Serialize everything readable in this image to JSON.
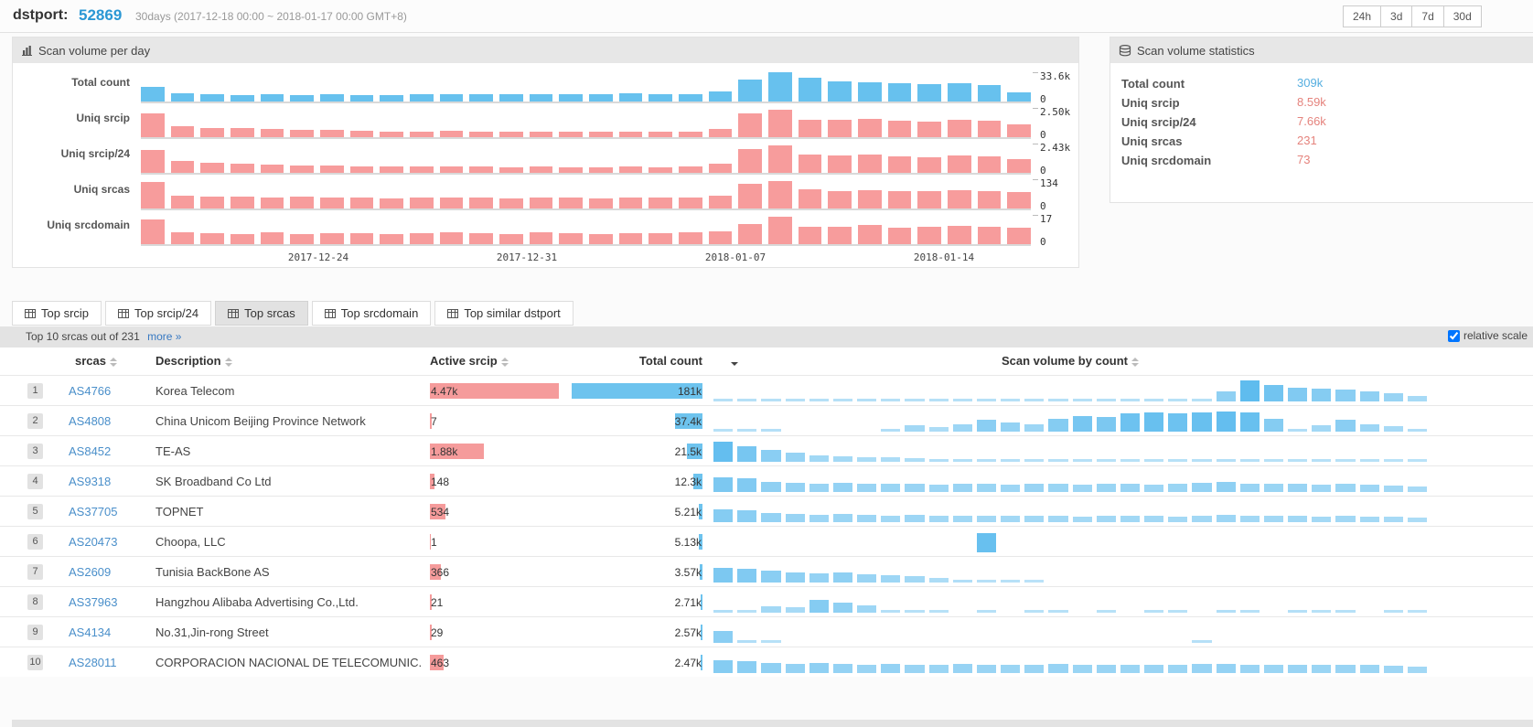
{
  "header": {
    "dstport_label": "dstport:",
    "dstport_value": "52869",
    "range_text": "30days (2017-12-18 00:00 ~ 2018-01-17 00:00 GMT+8)",
    "range_buttons": [
      "24h",
      "3d",
      "7d",
      "30d"
    ]
  },
  "colors": {
    "accent_blue": "#2a97d4",
    "chart_bar_blue": "#67c1ee",
    "chart_bar_pink": "#f79c9c",
    "table_bar_blue": "#6dc3ee",
    "table_bar_red": "#f59b9b",
    "stat_blue": "#55aee0",
    "stat_red": "#e5837d",
    "link_blue": "#4a8fca"
  },
  "chart_panel": {
    "title": "Scan volume per day"
  },
  "chart_data": {
    "type": "bar",
    "title": "Scan volume per day",
    "n_days": 30,
    "x_start": "2017-12-18",
    "x_end": "2018-01-16",
    "x_tick_labels": [
      "2017-12-24",
      "2017-12-31",
      "2018-01-07",
      "2018-01-14"
    ],
    "x_tick_day_index": [
      6,
      13,
      20,
      27
    ],
    "grid": false,
    "series": [
      {
        "name": "Total count",
        "color": "#67c1ee",
        "axis_max": "33.6k",
        "axis_min": "0",
        "ylim": [
          0,
          33600
        ],
        "values_rel": [
          0.5,
          0.28,
          0.25,
          0.22,
          0.24,
          0.22,
          0.25,
          0.23,
          0.22,
          0.24,
          0.26,
          0.25,
          0.24,
          0.26,
          0.24,
          0.25,
          0.27,
          0.25,
          0.26,
          0.35,
          0.75,
          1.0,
          0.8,
          0.7,
          0.65,
          0.62,
          0.58,
          0.62,
          0.55,
          0.3
        ]
      },
      {
        "name": "Uniq srcip",
        "color": "#f79c9c",
        "axis_max": "2.50k",
        "axis_min": "0",
        "ylim": [
          0,
          2500
        ],
        "values_rel": [
          0.8,
          0.38,
          0.32,
          0.3,
          0.27,
          0.25,
          0.24,
          0.22,
          0.2,
          0.2,
          0.22,
          0.2,
          0.19,
          0.2,
          0.18,
          0.18,
          0.2,
          0.18,
          0.2,
          0.28,
          0.8,
          0.95,
          0.6,
          0.58,
          0.62,
          0.55,
          0.52,
          0.58,
          0.55,
          0.45
        ]
      },
      {
        "name": "Uniq srcip/24",
        "color": "#f79c9c",
        "axis_max": "2.43k",
        "axis_min": "0",
        "ylim": [
          0,
          2430
        ],
        "values_rel": [
          0.78,
          0.4,
          0.34,
          0.3,
          0.28,
          0.26,
          0.24,
          0.22,
          0.21,
          0.21,
          0.23,
          0.21,
          0.2,
          0.21,
          0.19,
          0.19,
          0.21,
          0.19,
          0.21,
          0.3,
          0.82,
          0.95,
          0.62,
          0.6,
          0.63,
          0.57,
          0.54,
          0.6,
          0.57,
          0.48
        ]
      },
      {
        "name": "Uniq srcas",
        "color": "#f79c9c",
        "axis_max": "134",
        "axis_min": "0",
        "ylim": [
          0,
          134
        ],
        "values_rel": [
          0.9,
          0.45,
          0.42,
          0.4,
          0.38,
          0.4,
          0.38,
          0.36,
          0.35,
          0.36,
          0.38,
          0.36,
          0.35,
          0.38,
          0.36,
          0.35,
          0.38,
          0.36,
          0.38,
          0.45,
          0.85,
          0.95,
          0.65,
          0.6,
          0.62,
          0.58,
          0.6,
          0.62,
          0.58,
          0.55
        ]
      },
      {
        "name": "Uniq srcdomain",
        "color": "#f79c9c",
        "axis_max": "17",
        "axis_min": "0",
        "ylim": [
          0,
          17
        ],
        "values_rel": [
          0.85,
          0.4,
          0.38,
          0.35,
          0.4,
          0.35,
          0.38,
          0.36,
          0.34,
          0.38,
          0.4,
          0.36,
          0.35,
          0.4,
          0.36,
          0.35,
          0.38,
          0.36,
          0.4,
          0.45,
          0.7,
          0.95,
          0.6,
          0.58,
          0.65,
          0.55,
          0.58,
          0.62,
          0.58,
          0.55
        ]
      }
    ]
  },
  "stats_panel": {
    "title": "Scan volume statistics",
    "rows": [
      {
        "label": "Total count",
        "value": "309k"
      },
      {
        "label": "Uniq srcip",
        "value": "8.59k"
      },
      {
        "label": "Uniq srcip/24",
        "value": "7.66k"
      },
      {
        "label": "Uniq srcas",
        "value": "231"
      },
      {
        "label": "Uniq srcdomain",
        "value": "73"
      }
    ]
  },
  "tabs": [
    {
      "label": "Top srcip",
      "active": false
    },
    {
      "label": "Top srcip/24",
      "active": false
    },
    {
      "label": "Top srcas",
      "active": true
    },
    {
      "label": "Top srcdomain",
      "active": false
    },
    {
      "label": "Top similar dstport",
      "active": false
    }
  ],
  "subbar": {
    "summary": "Top 10 srcas out of 231",
    "more_label": "more »",
    "relative_scale_label": "relative scale",
    "relative_scale_checked": true
  },
  "table": {
    "columns": [
      "srcas",
      "Description",
      "Active srcip",
      "Total count",
      "Scan volume by count"
    ],
    "sorted_by": "Total count",
    "rows": [
      {
        "rank": "1",
        "srcas": "AS4766",
        "description": "Korea Telecom",
        "active_srcip": "4.47k",
        "active_srcip_rel": 0.97,
        "total_count": "181k",
        "total_count_rel": 1.0,
        "sparkline": [
          0.1,
          0.1,
          0.1,
          0.1,
          0.1,
          0.1,
          0.12,
          0.1,
          0.1,
          0.1,
          0.1,
          0.1,
          0.1,
          0.1,
          0.1,
          0.1,
          0.1,
          0.1,
          0.1,
          0.08,
          0.08,
          0.5,
          1.0,
          0.8,
          0.65,
          0.6,
          0.55,
          0.5,
          0.4,
          0.25
        ]
      },
      {
        "rank": "2",
        "srcas": "AS4808",
        "description": "China Unicom Beijing Province Network",
        "active_srcip": "7",
        "active_srcip_rel": 0.012,
        "total_count": "37.4k",
        "total_count_rel": 0.207,
        "sparkline": [
          0.08,
          0.1,
          0.12,
          0,
          0,
          0,
          0,
          0.15,
          0.3,
          0.2,
          0.35,
          0.55,
          0.45,
          0.35,
          0.6,
          0.75,
          0.7,
          0.85,
          0.9,
          0.85,
          0.9,
          0.95,
          0.9,
          0.6,
          0.15,
          0.3,
          0.55,
          0.35,
          0.25,
          0.15
        ]
      },
      {
        "rank": "3",
        "srcas": "AS8452",
        "description": "TE-AS",
        "active_srcip": "1.88k",
        "active_srcip_rel": 0.41,
        "total_count": "21.5k",
        "total_count_rel": 0.119,
        "sparkline": [
          0.95,
          0.75,
          0.55,
          0.42,
          0.32,
          0.28,
          0.22,
          0.2,
          0.18,
          0.15,
          0.14,
          0.12,
          0.12,
          0.1,
          0.1,
          0.1,
          0.08,
          0.08,
          0.08,
          0.08,
          0.1,
          0.12,
          0.1,
          0.08,
          0.08,
          0.1,
          0.08,
          0.08,
          0.06,
          0.06
        ]
      },
      {
        "rank": "4",
        "srcas": "AS9318",
        "description": "SK Broadband Co Ltd",
        "active_srcip": "148",
        "active_srcip_rel": 0.035,
        "total_count": "12.3k",
        "total_count_rel": 0.068,
        "sparkline": [
          0.7,
          0.65,
          0.5,
          0.45,
          0.4,
          0.45,
          0.4,
          0.38,
          0.4,
          0.35,
          0.4,
          0.38,
          0.35,
          0.4,
          0.38,
          0.35,
          0.38,
          0.4,
          0.35,
          0.38,
          0.45,
          0.5,
          0.4,
          0.38,
          0.4,
          0.35,
          0.38,
          0.35,
          0.3,
          0.25
        ]
      },
      {
        "rank": "5",
        "srcas": "AS37705",
        "description": "TOPNET",
        "active_srcip": "534",
        "active_srcip_rel": 0.115,
        "total_count": "5.21k",
        "total_count_rel": 0.029,
        "sparkline": [
          0.6,
          0.55,
          0.45,
          0.4,
          0.35,
          0.38,
          0.35,
          0.32,
          0.35,
          0.3,
          0.32,
          0.3,
          0.3,
          0.32,
          0.3,
          0.28,
          0.3,
          0.32,
          0.3,
          0.28,
          0.3,
          0.35,
          0.3,
          0.3,
          0.32,
          0.28,
          0.3,
          0.28,
          0.25,
          0.2
        ]
      },
      {
        "rank": "6",
        "srcas": "AS20473",
        "description": "Choopa, LLC",
        "active_srcip": "1",
        "active_srcip_rel": 0.008,
        "total_count": "5.13k",
        "total_count_rel": 0.028,
        "sparkline": [
          0,
          0,
          0,
          0,
          0,
          0,
          0,
          0,
          0,
          0,
          0,
          0.9,
          0,
          0,
          0,
          0,
          0,
          0,
          0,
          0,
          0,
          0,
          0,
          0,
          0,
          0,
          0,
          0,
          0,
          0
        ]
      },
      {
        "rank": "7",
        "srcas": "AS2609",
        "description": "Tunisia BackBone AS",
        "active_srcip": "366",
        "active_srcip_rel": 0.08,
        "total_count": "3.57k",
        "total_count_rel": 0.02,
        "sparkline": [
          0.7,
          0.65,
          0.55,
          0.5,
          0.45,
          0.5,
          0.4,
          0.35,
          0.3,
          0.2,
          0.15,
          0.1,
          0.08,
          0.05,
          0,
          0,
          0,
          0,
          0,
          0,
          0,
          0,
          0,
          0,
          0,
          0,
          0,
          0,
          0,
          0
        ]
      },
      {
        "rank": "8",
        "srcas": "AS37963",
        "description": "Hangzhou Alibaba Advertising Co.,Ltd.",
        "active_srcip": "21",
        "active_srcip_rel": 0.014,
        "total_count": "2.71k",
        "total_count_rel": 0.015,
        "sparkline": [
          0.15,
          0.1,
          0.3,
          0.25,
          0.6,
          0.5,
          0.35,
          0.12,
          0.1,
          0.08,
          0,
          0.1,
          0,
          0.08,
          0.1,
          0,
          0.08,
          0,
          0.1,
          0.08,
          0,
          0.15,
          0.1,
          0,
          0.12,
          0.08,
          0.1,
          0,
          0.08,
          0.05
        ]
      },
      {
        "rank": "9",
        "srcas": "AS4134",
        "description": "No.31,Jin-rong Street",
        "active_srcip": "29",
        "active_srcip_rel": 0.016,
        "total_count": "2.57k",
        "total_count_rel": 0.014,
        "sparkline": [
          0.55,
          0.15,
          0.08,
          0,
          0,
          0,
          0,
          0,
          0,
          0,
          0,
          0,
          0,
          0,
          0,
          0,
          0,
          0,
          0,
          0,
          0.1,
          0,
          0,
          0,
          0,
          0,
          0,
          0,
          0,
          0
        ]
      },
      {
        "rank": "10",
        "srcas": "AS28011",
        "description": "CORPORACION NACIONAL DE TELECOMUNIC...",
        "active_srcip": "463",
        "active_srcip_rel": 0.1,
        "total_count": "2.47k",
        "total_count_rel": 0.014,
        "sparkline": [
          0.6,
          0.55,
          0.5,
          0.45,
          0.5,
          0.45,
          0.4,
          0.45,
          0.4,
          0.38,
          0.42,
          0.4,
          0.38,
          0.4,
          0.42,
          0.38,
          0.4,
          0.38,
          0.4,
          0.38,
          0.42,
          0.45,
          0.4,
          0.38,
          0.4,
          0.38,
          0.4,
          0.38,
          0.35,
          0.3
        ]
      }
    ]
  }
}
